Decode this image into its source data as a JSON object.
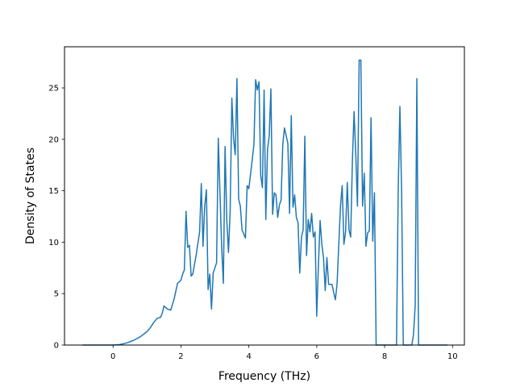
{
  "chart_data": {
    "type": "line",
    "title": "",
    "xlabel": "Frequency (THz)",
    "ylabel": "Density of States",
    "xlim": [
      -1.43,
      10.35
    ],
    "ylim": [
      0,
      29
    ],
    "xticks": [
      0,
      2,
      4,
      6,
      8,
      10
    ],
    "yticks": [
      0,
      5,
      10,
      15,
      20,
      25
    ],
    "grid": false,
    "legend": "none",
    "series": [
      {
        "color": "#1f77b4",
        "points": [
          [
            -0.9,
            0.0
          ],
          [
            0.0,
            0.0
          ],
          [
            0.2,
            0.05
          ],
          [
            0.4,
            0.2
          ],
          [
            0.6,
            0.45
          ],
          [
            0.8,
            0.8
          ],
          [
            1.0,
            1.3
          ],
          [
            1.1,
            1.7
          ],
          [
            1.2,
            2.2
          ],
          [
            1.3,
            2.6
          ],
          [
            1.4,
            2.7
          ],
          [
            1.45,
            3.1
          ],
          [
            1.5,
            3.8
          ],
          [
            1.6,
            3.5
          ],
          [
            1.7,
            3.4
          ],
          [
            1.8,
            4.5
          ],
          [
            1.9,
            6.0
          ],
          [
            2.0,
            6.3
          ],
          [
            2.05,
            6.9
          ],
          [
            2.1,
            7.3
          ],
          [
            2.15,
            13.0
          ],
          [
            2.2,
            9.5
          ],
          [
            2.25,
            9.7
          ],
          [
            2.3,
            6.7
          ],
          [
            2.35,
            6.9
          ],
          [
            2.45,
            8.8
          ],
          [
            2.55,
            11.0
          ],
          [
            2.6,
            15.7
          ],
          [
            2.65,
            9.6
          ],
          [
            2.7,
            13.5
          ],
          [
            2.75,
            15.1
          ],
          [
            2.8,
            5.4
          ],
          [
            2.85,
            6.9
          ],
          [
            2.9,
            3.5
          ],
          [
            2.95,
            7.0
          ],
          [
            3.05,
            8.0
          ],
          [
            3.1,
            20.1
          ],
          [
            3.2,
            9.5
          ],
          [
            3.25,
            6.0
          ],
          [
            3.3,
            19.3
          ],
          [
            3.35,
            12.2
          ],
          [
            3.4,
            9.0
          ],
          [
            3.45,
            13.0
          ],
          [
            3.5,
            24.0
          ],
          [
            3.55,
            20.1
          ],
          [
            3.6,
            18.5
          ],
          [
            3.65,
            25.9
          ],
          [
            3.7,
            14.2
          ],
          [
            3.75,
            13.5
          ],
          [
            3.8,
            11.2
          ],
          [
            3.9,
            10.4
          ],
          [
            3.95,
            15.5
          ],
          [
            4.0,
            15.2
          ],
          [
            4.1,
            18.0
          ],
          [
            4.15,
            19.5
          ],
          [
            4.2,
            25.8
          ],
          [
            4.25,
            24.8
          ],
          [
            4.3,
            25.6
          ],
          [
            4.35,
            16.5
          ],
          [
            4.4,
            15.3
          ],
          [
            4.45,
            24.8
          ],
          [
            4.5,
            12.2
          ],
          [
            4.55,
            19.0
          ],
          [
            4.6,
            20.3
          ],
          [
            4.65,
            24.9
          ],
          [
            4.7,
            12.7
          ],
          [
            4.75,
            14.8
          ],
          [
            4.8,
            14.6
          ],
          [
            4.85,
            12.4
          ],
          [
            4.9,
            13.6
          ],
          [
            4.95,
            14.1
          ],
          [
            5.0,
            19.5
          ],
          [
            5.05,
            21.1
          ],
          [
            5.15,
            19.6
          ],
          [
            5.2,
            12.8
          ],
          [
            5.25,
            22.3
          ],
          [
            5.3,
            13.4
          ],
          [
            5.35,
            14.6
          ],
          [
            5.4,
            12.4
          ],
          [
            5.45,
            11.9
          ],
          [
            5.5,
            7.0
          ],
          [
            5.55,
            10.5
          ],
          [
            5.6,
            11.2
          ],
          [
            5.65,
            20.3
          ],
          [
            5.7,
            8.7
          ],
          [
            5.75,
            12.2
          ],
          [
            5.8,
            11.0
          ],
          [
            5.85,
            12.8
          ],
          [
            5.9,
            10.5
          ],
          [
            5.95,
            11.0
          ],
          [
            6.0,
            2.8
          ],
          [
            6.05,
            7.8
          ],
          [
            6.1,
            12.1
          ],
          [
            6.15,
            9.8
          ],
          [
            6.2,
            8.5
          ],
          [
            6.25,
            5.3
          ],
          [
            6.3,
            8.5
          ],
          [
            6.35,
            5.9
          ],
          [
            6.45,
            5.9
          ],
          [
            6.5,
            5.1
          ],
          [
            6.55,
            4.4
          ],
          [
            6.6,
            6.0
          ],
          [
            6.65,
            9.8
          ],
          [
            6.7,
            13.5
          ],
          [
            6.75,
            15.5
          ],
          [
            6.8,
            9.8
          ],
          [
            6.85,
            11.0
          ],
          [
            6.9,
            15.8
          ],
          [
            6.95,
            11.2
          ],
          [
            7.0,
            10.5
          ],
          [
            7.05,
            17.8
          ],
          [
            7.1,
            22.7
          ],
          [
            7.15,
            18.5
          ],
          [
            7.2,
            13.5
          ],
          [
            7.25,
            27.7
          ],
          [
            7.3,
            27.7
          ],
          [
            7.35,
            13.5
          ],
          [
            7.4,
            16.7
          ],
          [
            7.45,
            9.6
          ],
          [
            7.5,
            10.9
          ],
          [
            7.55,
            11.1
          ],
          [
            7.6,
            22.1
          ],
          [
            7.65,
            10.1
          ],
          [
            7.7,
            14.8
          ],
          [
            7.75,
            0.0
          ],
          [
            8.35,
            0.0
          ],
          [
            8.4,
            15.0
          ],
          [
            8.45,
            23.2
          ],
          [
            8.5,
            15.0
          ],
          [
            8.55,
            0.0
          ],
          [
            8.8,
            0.0
          ],
          [
            8.85,
            1.0
          ],
          [
            8.9,
            3.8
          ],
          [
            8.95,
            25.9
          ],
          [
            9.0,
            0.0
          ],
          [
            9.85,
            0.0
          ]
        ]
      }
    ]
  }
}
